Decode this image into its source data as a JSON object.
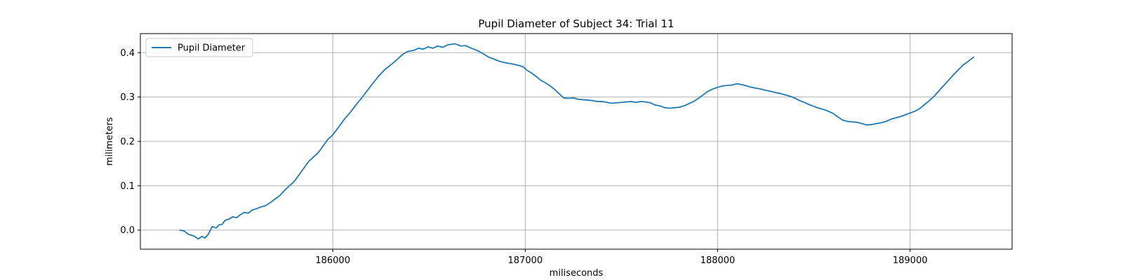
{
  "chart_data": {
    "type": "line",
    "title": "Pupil Diameter of Subject 34: Trial 11",
    "xlabel": "miliseconds",
    "ylabel": "milimeters",
    "xlim": [
      185000,
      189530
    ],
    "ylim": [
      -0.043,
      0.443
    ],
    "x_ticks": [
      186000,
      187000,
      188000,
      189000
    ],
    "y_ticks": [
      0.0,
      0.1,
      0.2,
      0.3,
      0.4
    ],
    "x_tick_labels": [
      "186000",
      "187000",
      "188000",
      "189000"
    ],
    "y_tick_labels": [
      "0.0",
      "0.1",
      "0.2",
      "0.3",
      "0.4"
    ],
    "grid": true,
    "legend_position": "top-left",
    "series": [
      {
        "name": "Pupil Diameter",
        "color": "#1f77b4",
        "x": [
          185205,
          185228,
          185251,
          185278,
          185300,
          185320,
          185335,
          185352,
          185373,
          185394,
          185410,
          185425,
          185440,
          185460,
          185480,
          185500,
          185520,
          185542,
          185560,
          185580,
          185601,
          185625,
          185650,
          185675,
          185700,
          185725,
          185750,
          185775,
          185800,
          185825,
          185850,
          185875,
          185900,
          185925,
          185950,
          185975,
          186000,
          186030,
          186060,
          186090,
          186120,
          186150,
          186180,
          186210,
          186240,
          186270,
          186300,
          186330,
          186360,
          186390,
          186420,
          186445,
          186470,
          186495,
          186520,
          186545,
          186570,
          186600,
          186635,
          186665,
          186690,
          186720,
          186750,
          186780,
          186810,
          186840,
          186870,
          186900,
          186930,
          186960,
          186990,
          187010,
          187030,
          187055,
          187080,
          187105,
          187130,
          187150,
          187175,
          187200,
          187225,
          187250,
          187275,
          187300,
          187325,
          187350,
          187375,
          187400,
          187425,
          187450,
          187475,
          187500,
          187525,
          187550,
          187575,
          187600,
          187625,
          187650,
          187675,
          187700,
          187725,
          187750,
          187775,
          187800,
          187825,
          187850,
          187875,
          187900,
          187925,
          187950,
          187975,
          188000,
          188025,
          188050,
          188075,
          188100,
          188125,
          188150,
          188175,
          188200,
          188225,
          188250,
          188275,
          188300,
          188325,
          188350,
          188375,
          188400,
          188425,
          188450,
          188475,
          188500,
          188525,
          188550,
          188575,
          188600,
          188625,
          188650,
          188675,
          188700,
          188725,
          188750,
          188775,
          188800,
          188825,
          188850,
          188875,
          188900,
          188925,
          188950,
          188975,
          189000,
          189025,
          189050,
          189075,
          189100,
          189125,
          189150,
          189175,
          189200,
          189225,
          189250,
          189275,
          189300,
          189330
        ],
        "y": [
          0.0,
          -0.002,
          -0.01,
          -0.013,
          -0.02,
          -0.014,
          -0.018,
          -0.01,
          0.008,
          0.005,
          0.012,
          0.013,
          0.022,
          0.025,
          0.03,
          0.028,
          0.035,
          0.04,
          0.038,
          0.045,
          0.048,
          0.052,
          0.055,
          0.062,
          0.07,
          0.078,
          0.09,
          0.1,
          0.11,
          0.125,
          0.14,
          0.155,
          0.165,
          0.175,
          0.19,
          0.205,
          0.215,
          0.232,
          0.25,
          0.265,
          0.282,
          0.298,
          0.315,
          0.332,
          0.348,
          0.362,
          0.372,
          0.383,
          0.395,
          0.403,
          0.405,
          0.41,
          0.408,
          0.413,
          0.41,
          0.415,
          0.412,
          0.418,
          0.42,
          0.415,
          0.416,
          0.41,
          0.405,
          0.398,
          0.39,
          0.385,
          0.38,
          0.377,
          0.375,
          0.372,
          0.368,
          0.36,
          0.355,
          0.347,
          0.338,
          0.332,
          0.325,
          0.318,
          0.308,
          0.298,
          0.297,
          0.298,
          0.295,
          0.294,
          0.293,
          0.292,
          0.29,
          0.29,
          0.288,
          0.286,
          0.287,
          0.288,
          0.289,
          0.29,
          0.288,
          0.29,
          0.289,
          0.287,
          0.282,
          0.28,
          0.276,
          0.275,
          0.276,
          0.277,
          0.28,
          0.285,
          0.29,
          0.297,
          0.305,
          0.313,
          0.318,
          0.322,
          0.325,
          0.326,
          0.327,
          0.33,
          0.328,
          0.325,
          0.322,
          0.32,
          0.318,
          0.315,
          0.313,
          0.31,
          0.308,
          0.305,
          0.302,
          0.298,
          0.292,
          0.288,
          0.283,
          0.279,
          0.275,
          0.272,
          0.268,
          0.263,
          0.255,
          0.248,
          0.245,
          0.244,
          0.243,
          0.24,
          0.237,
          0.238,
          0.24,
          0.242,
          0.245,
          0.25,
          0.253,
          0.256,
          0.26,
          0.264,
          0.268,
          0.274,
          0.283,
          0.292,
          0.302,
          0.314,
          0.326,
          0.338,
          0.35,
          0.361,
          0.372,
          0.38,
          0.39
        ]
      }
    ]
  }
}
